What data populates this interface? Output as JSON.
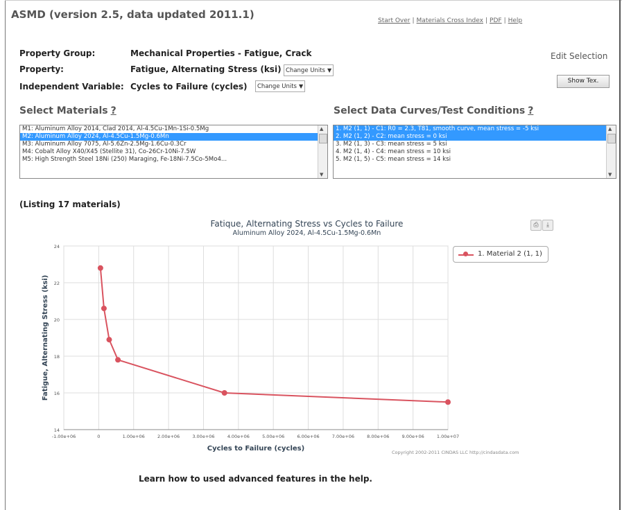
{
  "header": {
    "app_title": "ASMD (version 2.5, data updated 2011.1)",
    "links": [
      "Start Over",
      "Materials Cross Index",
      "PDF",
      "Help"
    ]
  },
  "selection": {
    "property_group_label": "Property Group:",
    "property_group_value": "Mechanical Properties - Fatigue, Crack",
    "property_label": "Property:",
    "property_value": "Fatigue, Alternating Stress (ksi)",
    "property_units_select": "Change Units",
    "indep_label": "Independent Variable:",
    "indep_value": "Cycles to Failure (cycles)",
    "indep_units_select": "Change Units",
    "edit_selection": "Edit Selection",
    "show_text_button": "Show Tex."
  },
  "materials": {
    "heading": "Select Materials",
    "help": "?",
    "items": [
      "M1: Aluminum Alloy 2014, Clad 2014, Al-4.5Cu-1Mn-1Si-0.5Mg",
      "M2: Aluminum Alloy 2024, Al-4.5Cu-1.5Mg-0.6Mn",
      "M3: Aluminum Alloy 7075, Al-5.6Zn-2.5Mg-1.6Cu-0.3Cr",
      "M4: Cobalt Alloy X40/X45 (Stellite 31), Co-26Cr-10Ni-7.5W",
      "M5: High Strength Steel 18Ni (250) Maraging, Fe-18Ni-7.5Co-5Mo4..."
    ],
    "selected_index": 1,
    "listing": "(Listing 17 materials)"
  },
  "curves": {
    "heading": "Select Data Curves/Test Conditions",
    "help": "?",
    "items": [
      "1. M2 (1, 1) - C1: R0 = 2.3, T81, smooth curve, mean stress = -5 ksi",
      "2. M2 (1, 2) - C2: mean stress = 0 ksi",
      "3. M2 (1, 3) - C3: mean stress = 5 ksi",
      "4. M2 (1, 4) - C4: mean stress = 10 ksi",
      "5. M2 (1, 5) - C5: mean stress = 14 ksi"
    ],
    "selected_indices": [
      0,
      1
    ]
  },
  "chart": {
    "print_icon": "print-icon",
    "export_icon": "export-icon",
    "copyright": "Copyright 2002-2011 CINDAS LLC http://cindasdata.com",
    "help_text": "Learn how to used advanced features in the help."
  },
  "chart_data": {
    "type": "line",
    "title": "Fatique, Alternating Stress vs Cycles to Failure",
    "subtitle": "Aluminum Alloy 2024, Al-4.5Cu-1.5Mg-0.6Mn",
    "xlabel": "Cycles to Failure (cycles)",
    "ylabel": "Fatigue, Alternating Stress (ksi)",
    "xlim": [
      -1000000,
      10000000
    ],
    "ylim": [
      14,
      24
    ],
    "x_ticks": [
      "-1.00e+06",
      "0",
      "1.00e+06",
      "2.00e+06",
      "3.00e+06",
      "4.00e+06",
      "5.00e+06",
      "6.00e+06",
      "7.00e+06",
      "8.00e+06",
      "9.00e+06",
      "1.00e+07"
    ],
    "y_ticks": [
      "14",
      "16",
      "18",
      "20",
      "22",
      "24"
    ],
    "grid": true,
    "legend_position": "top-right",
    "color": "#d9535f",
    "series": [
      {
        "name": "1. Material 2 (1, 1)",
        "x": [
          50000,
          150000,
          300000,
          550000,
          3600000,
          10000000
        ],
        "y": [
          22.8,
          20.6,
          18.9,
          17.8,
          16.0,
          15.5
        ]
      }
    ]
  }
}
